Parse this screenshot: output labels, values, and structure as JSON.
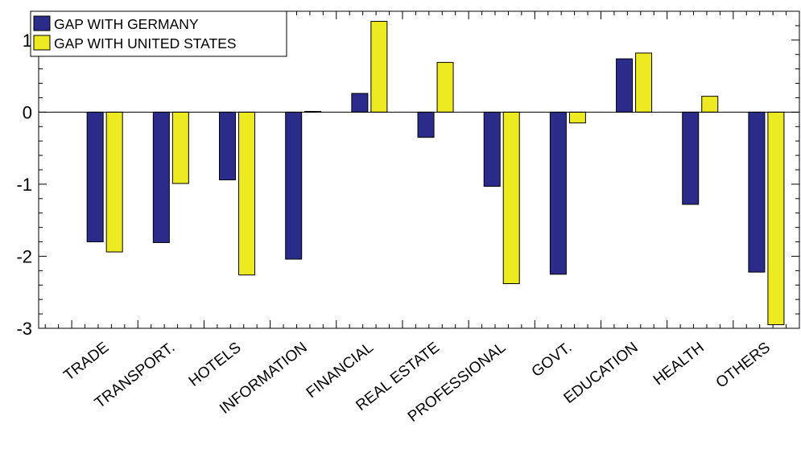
{
  "chart_data": {
    "type": "bar",
    "categories": [
      "TRADE",
      "TRANSPORT.",
      "HOTELS",
      "INFORMATION",
      "FINANCIAL",
      "REAL ESTATE",
      "PROFESSIONAL",
      "GOVT.",
      "EDUCATION",
      "HEALTH",
      "OTHERS"
    ],
    "series": [
      {
        "name": "GAP WITH GERMANY",
        "color": "#2b2b8a",
        "values": [
          -1.8,
          -1.81,
          -0.94,
          -2.04,
          0.26,
          -0.35,
          -1.03,
          -2.25,
          0.74,
          -1.28,
          -2.22
        ]
      },
      {
        "name": "GAP WITH UNITED STATES",
        "color": "#eeea22",
        "values": [
          -1.94,
          -0.99,
          -2.26,
          0.01,
          1.26,
          0.69,
          -2.38,
          -0.15,
          0.82,
          0.22,
          -2.95
        ]
      }
    ],
    "ylim": [
      -3,
      1.4
    ],
    "yticks": [
      {
        "value": 1,
        "label": "1"
      },
      {
        "value": 0,
        "label": "0"
      },
      {
        "value": -1,
        "label": "-1"
      },
      {
        "value": -2,
        "label": "-2"
      },
      {
        "value": -3,
        "label": "-3"
      }
    ],
    "minor_ticks_per_major": 5,
    "grid": false,
    "legend": "top-left",
    "xlabel": "",
    "ylabel": "",
    "title": ""
  }
}
